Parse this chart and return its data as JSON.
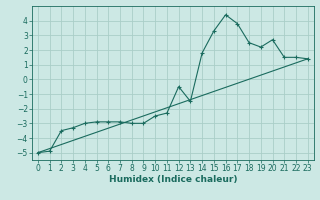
{
  "xlabel": "Humidex (Indice chaleur)",
  "bg_color": "#cce8e4",
  "grid_color": "#aacec8",
  "line_color": "#1a6b5e",
  "xlim": [
    -0.5,
    23.5
  ],
  "ylim": [
    -5.5,
    5.0
  ],
  "yticks": [
    -5,
    -4,
    -3,
    -2,
    -1,
    0,
    1,
    2,
    3,
    4
  ],
  "xticks": [
    0,
    1,
    2,
    3,
    4,
    5,
    6,
    7,
    8,
    9,
    10,
    11,
    12,
    13,
    14,
    15,
    16,
    17,
    18,
    19,
    20,
    21,
    22,
    23
  ],
  "curve1_x": [
    0,
    1,
    2,
    3,
    4,
    5,
    6,
    7,
    8,
    9,
    10,
    11,
    12,
    13,
    14,
    15,
    16,
    17,
    18,
    19,
    20,
    21,
    22,
    23
  ],
  "curve1_y": [
    -5.0,
    -4.9,
    -3.5,
    -3.3,
    -3.0,
    -2.9,
    -2.9,
    -2.9,
    -3.0,
    -3.0,
    -2.5,
    -2.3,
    -0.5,
    -1.5,
    1.8,
    3.3,
    4.4,
    3.8,
    2.5,
    2.2,
    2.7,
    1.5,
    1.5,
    1.4
  ],
  "curve2_x": [
    0,
    23
  ],
  "curve2_y": [
    -5.0,
    1.4
  ],
  "tick_fontsize": 5.5,
  "xlabel_fontsize": 6.5
}
